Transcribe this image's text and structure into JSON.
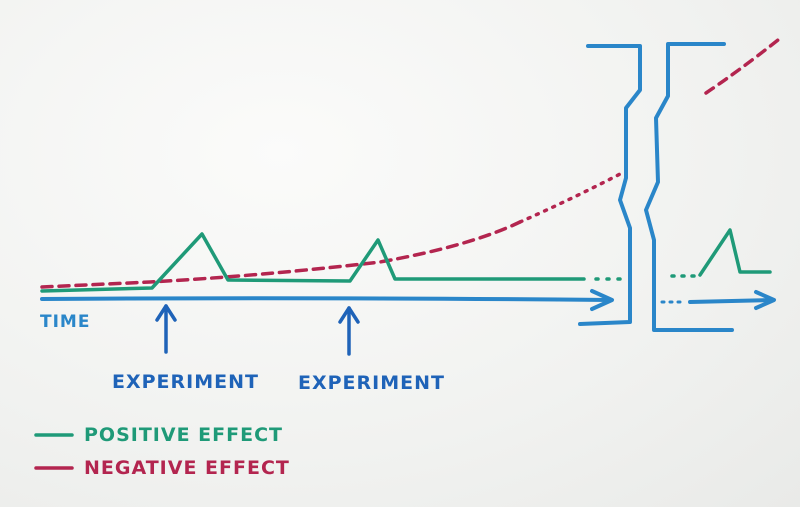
{
  "labels": {
    "time": "TIME",
    "experiment_1": "EXPERIMENT",
    "experiment_2": "EXPERIMENT"
  },
  "legend": {
    "positive": "POSITIVE EFFECT",
    "negative": "NEGATIVE EFFECT"
  },
  "colors": {
    "positive": "#1f9a78",
    "negative": "#b3254f",
    "time_axis": "#2a86c9",
    "annotation": "#1f63b8",
    "break_mark": "#2a86c9"
  }
}
